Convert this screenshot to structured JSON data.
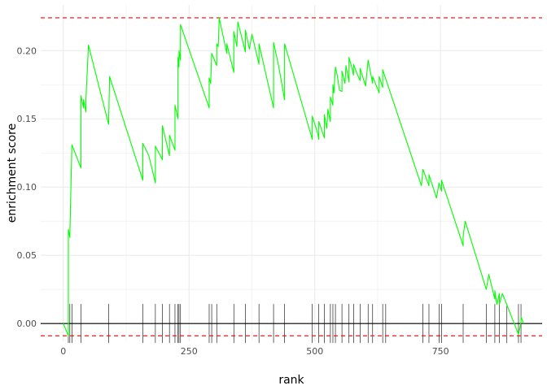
{
  "chart_data": {
    "type": "line",
    "title": "",
    "xlabel": "rank",
    "ylabel": "enrichment score",
    "xlim": [
      -45,
      952
    ],
    "ylim": [
      -0.013,
      0.2335
    ],
    "x_ticks": [
      0,
      250,
      500,
      750
    ],
    "x_tick_labels": [
      "0",
      "250",
      "500",
      "750"
    ],
    "y_ticks": [
      0.0,
      0.05,
      0.1,
      0.15,
      0.2
    ],
    "y_tick_labels": [
      "0.00",
      "0.05",
      "0.10",
      "0.15",
      "0.20"
    ],
    "grid": true,
    "legend": "none",
    "colors": {
      "line": "#00ff00",
      "threshold": "#ff0000",
      "zero_line": "#000000",
      "rug": "#000000",
      "grid": "#ebebeb"
    },
    "max_line": 0.224,
    "min_line": -0.009,
    "zero_line": 0.0,
    "rug_positions": [
      10,
      13,
      17,
      35,
      90,
      158,
      183,
      197,
      211,
      222,
      228,
      230,
      233,
      290,
      295,
      305,
      339,
      362,
      389,
      418,
      440,
      495,
      508,
      519,
      531,
      536,
      541,
      554,
      568,
      577,
      590,
      606,
      615,
      635,
      641,
      715,
      727,
      747,
      752,
      795,
      841,
      858,
      867,
      882,
      905,
      910
    ],
    "series": [
      {
        "values": [
          [
            0,
            0.0
          ],
          [
            10,
            -0.009
          ],
          [
            10,
            0.069
          ],
          [
            13,
            0.063
          ],
          [
            13,
            0.066
          ],
          [
            17,
            0.131
          ],
          [
            35,
            0.114
          ],
          [
            35,
            0.167
          ],
          [
            40,
            0.158
          ],
          [
            40,
            0.164
          ],
          [
            45,
            0.155
          ],
          [
            45,
            0.165
          ],
          [
            50,
            0.204
          ],
          [
            90,
            0.146
          ],
          [
            92,
            0.181
          ],
          [
            158,
            0.105
          ],
          [
            158,
            0.132
          ],
          [
            170,
            0.123
          ],
          [
            183,
            0.103
          ],
          [
            183,
            0.13
          ],
          [
            197,
            0.12
          ],
          [
            197,
            0.145
          ],
          [
            211,
            0.123
          ],
          [
            211,
            0.138
          ],
          [
            222,
            0.127
          ],
          [
            222,
            0.16
          ],
          [
            228,
            0.15
          ],
          [
            228,
            0.17
          ],
          [
            228,
            0.195
          ],
          [
            230,
            0.188
          ],
          [
            230,
            0.2
          ],
          [
            233,
            0.193
          ],
          [
            233,
            0.219
          ],
          [
            290,
            0.158
          ],
          [
            290,
            0.18
          ],
          [
            293,
            0.176
          ],
          [
            295,
            0.198
          ],
          [
            305,
            0.189
          ],
          [
            305,
            0.205
          ],
          [
            308,
            0.203
          ],
          [
            310,
            0.224
          ],
          [
            325,
            0.198
          ],
          [
            325,
            0.205
          ],
          [
            339,
            0.184
          ],
          [
            339,
            0.214
          ],
          [
            345,
            0.203
          ],
          [
            347,
            0.221
          ],
          [
            362,
            0.199
          ],
          [
            362,
            0.215
          ],
          [
            370,
            0.201
          ],
          [
            375,
            0.212
          ],
          [
            389,
            0.19
          ],
          [
            389,
            0.205
          ],
          [
            418,
            0.158
          ],
          [
            418,
            0.206
          ],
          [
            428,
            0.189
          ],
          [
            440,
            0.164
          ],
          [
            440,
            0.205
          ],
          [
            495,
            0.135
          ],
          [
            495,
            0.152
          ],
          [
            506,
            0.139
          ],
          [
            508,
            0.135
          ],
          [
            508,
            0.148
          ],
          [
            519,
            0.136
          ],
          [
            519,
            0.153
          ],
          [
            524,
            0.143
          ],
          [
            526,
            0.157
          ],
          [
            531,
            0.148
          ],
          [
            531,
            0.166
          ],
          [
            536,
            0.16
          ],
          [
            536,
            0.175
          ],
          [
            538,
            0.169
          ],
          [
            541,
            0.188
          ],
          [
            545,
            0.181
          ],
          [
            549,
            0.171
          ],
          [
            554,
            0.17
          ],
          [
            554,
            0.185
          ],
          [
            560,
            0.176
          ],
          [
            562,
            0.189
          ],
          [
            568,
            0.177
          ],
          [
            568,
            0.195
          ],
          [
            574,
            0.187
          ],
          [
            577,
            0.182
          ],
          [
            577,
            0.19
          ],
          [
            584,
            0.183
          ],
          [
            590,
            0.178
          ],
          [
            590,
            0.187
          ],
          [
            601,
            0.174
          ],
          [
            606,
            0.193
          ],
          [
            615,
            0.176
          ],
          [
            615,
            0.181
          ],
          [
            628,
            0.169
          ],
          [
            628,
            0.181
          ],
          [
            635,
            0.173
          ],
          [
            635,
            0.186
          ],
          [
            712,
            0.101
          ],
          [
            715,
            0.113
          ],
          [
            727,
            0.101
          ],
          [
            727,
            0.109
          ],
          [
            742,
            0.092
          ],
          [
            747,
            0.103
          ],
          [
            752,
            0.097
          ],
          [
            752,
            0.105
          ],
          [
            795,
            0.057
          ],
          [
            795,
            0.064
          ],
          [
            799,
            0.075
          ],
          [
            841,
            0.025
          ],
          [
            846,
            0.036
          ],
          [
            858,
            0.018
          ],
          [
            858,
            0.024
          ],
          [
            862,
            0.014
          ],
          [
            867,
            0.022
          ],
          [
            867,
            0.014
          ],
          [
            873,
            0.022
          ],
          [
            905,
            -0.008
          ],
          [
            910,
            0.001
          ],
          [
            910,
            0.005
          ],
          [
            915,
            0.0
          ]
        ]
      }
    ]
  }
}
